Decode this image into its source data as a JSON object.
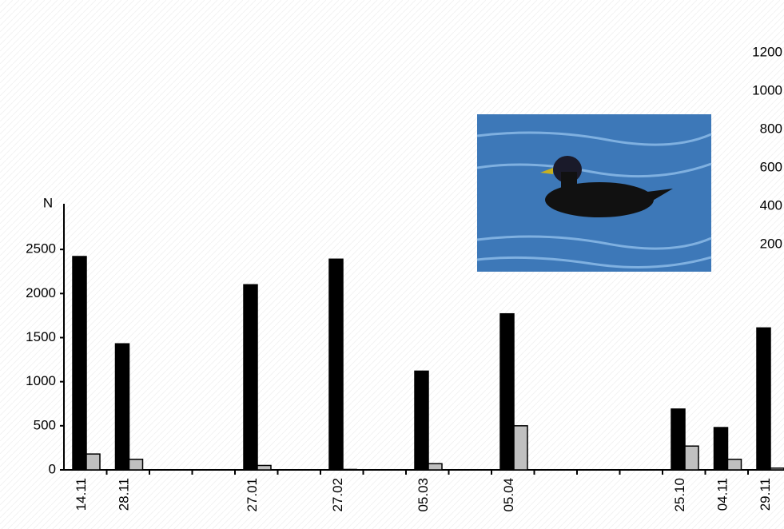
{
  "chart_data": {
    "type": "bar",
    "y_label": "N",
    "categories": [
      "14.11",
      "28.11",
      null,
      null,
      "27.01",
      null,
      "27.02",
      null,
      "05.03",
      null,
      "05.04",
      null,
      null,
      null,
      "25.10",
      "04.11",
      "29.11"
    ],
    "series": [
      {
        "color": "#000000",
        "values": [
          2420,
          1430,
          0,
          0,
          2100,
          0,
          2390,
          0,
          1120,
          0,
          1770,
          0,
          0,
          0,
          690,
          480,
          1610
        ]
      },
      {
        "color": "#c0c0c0",
        "values": [
          180,
          120,
          0,
          0,
          50,
          0,
          5,
          0,
          70,
          0,
          500,
          0,
          0,
          0,
          270,
          120,
          20
        ]
      }
    ],
    "ylim": [
      0,
      3000
    ],
    "yticks": [
      0,
      500,
      1000,
      1500,
      2000,
      2500
    ],
    "y2lim": [
      0,
      1200
    ],
    "y2ticks": [
      200,
      400,
      600,
      800,
      1000,
      1200
    ]
  }
}
